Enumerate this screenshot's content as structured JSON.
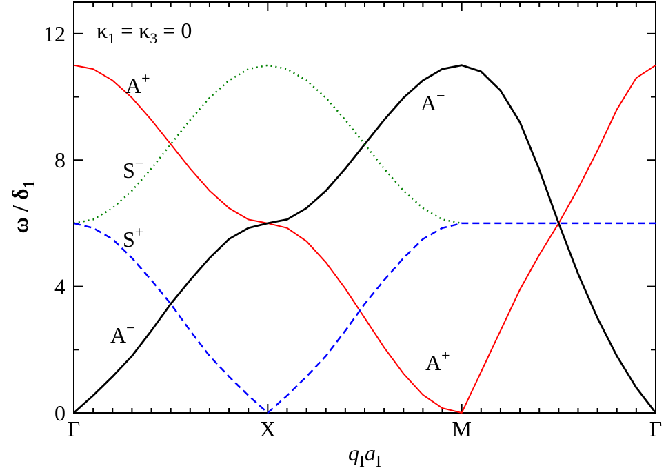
{
  "chart_data": {
    "type": "line",
    "annotation_top": {
      "parts": [
        "κ",
        "1",
        " = κ",
        "3",
        " = 0"
      ]
    },
    "ylabel": {
      "parts": [
        "ω / δ",
        "1"
      ]
    },
    "xlabel": {
      "parts": [
        "q",
        "I",
        "a",
        "I"
      ]
    },
    "x": [
      0,
      0.1,
      0.2,
      0.3,
      0.4,
      0.5,
      0.6,
      0.7,
      0.8,
      0.9,
      1,
      1.1,
      1.2,
      1.3,
      1.4,
      1.5,
      1.6,
      1.7,
      1.8,
      1.9,
      2,
      2.1,
      2.2,
      2.3,
      2.4,
      2.5,
      2.6,
      2.7,
      2.8,
      2.9,
      3
    ],
    "series": [
      {
        "color": "#ff0000",
        "style": "solid",
        "values": [
          11,
          10.88,
          10.52,
          9.97,
          9.27,
          8.5,
          7.73,
          7.03,
          6.48,
          6.12,
          6,
          5.85,
          5.43,
          4.76,
          3.93,
          3,
          2.07,
          1.24,
          0.57,
          0.15,
          0,
          1.3,
          2.6,
          3.9,
          5.0,
          6.0,
          7.1,
          8.3,
          9.6,
          10.6,
          11
        ]
      },
      {
        "color": "#000000",
        "style": "solid",
        "values": [
          0,
          0.55,
          1.15,
          1.8,
          2.6,
          3.45,
          4.2,
          4.9,
          5.5,
          5.85,
          6,
          6.12,
          6.48,
          7.03,
          7.73,
          8.5,
          9.27,
          9.97,
          10.52,
          10.88,
          11,
          10.8,
          10.2,
          9.2,
          7.7,
          6,
          4.4,
          3.0,
          1.8,
          0.8,
          0
        ]
      },
      {
        "color": "#008000",
        "style": "dotted",
        "values": [
          6,
          6.12,
          6.48,
          7.03,
          7.73,
          8.5,
          9.27,
          9.97,
          10.52,
          10.88,
          11,
          10.88,
          10.52,
          9.97,
          9.27,
          8.5,
          7.73,
          7.03,
          6.48,
          6.12,
          6,
          null,
          null,
          null,
          null,
          null,
          null,
          null,
          null,
          null,
          null
        ]
      },
      {
        "color": "#0000ff",
        "style": "dashed",
        "values": [
          6,
          5.85,
          5.5,
          4.9,
          4.2,
          3.45,
          2.6,
          1.8,
          1.15,
          0.55,
          0,
          0.55,
          1.15,
          1.8,
          2.6,
          3.45,
          4.2,
          4.9,
          5.5,
          5.85,
          6,
          6,
          6,
          6,
          6,
          6,
          6,
          6,
          6,
          6,
          6
        ]
      }
    ],
    "annotations": [
      {
        "base": "A",
        "sup": "+"
      },
      {
        "base": "S",
        "sup": "−"
      },
      {
        "base": "S",
        "sup": "+"
      },
      {
        "base": "A",
        "sup": "−"
      },
      {
        "base": "A",
        "sup": "+"
      },
      {
        "base": "A",
        "sup": "−"
      }
    ],
    "xlim": [
      0,
      3
    ],
    "xticks": [
      {
        "value": 0,
        "label": "Γ"
      },
      {
        "value": 1,
        "label": "X"
      },
      {
        "value": 2,
        "label": "M"
      },
      {
        "value": 3,
        "label": "Γ"
      }
    ],
    "xticks_minor": [
      0.1,
      0.2,
      0.3,
      0.4,
      0.5,
      0.6,
      0.7,
      0.8,
      0.9,
      1.1,
      1.2,
      1.3,
      1.4,
      1.5,
      1.6,
      1.7,
      1.8,
      1.9,
      2.1,
      2.2,
      2.3,
      2.4,
      2.5,
      2.6,
      2.7,
      2.8,
      2.9
    ],
    "ylim": [
      0,
      13
    ],
    "yticks": [
      0,
      4,
      8,
      12
    ],
    "yticks_minor": [
      2,
      6,
      10
    ]
  }
}
